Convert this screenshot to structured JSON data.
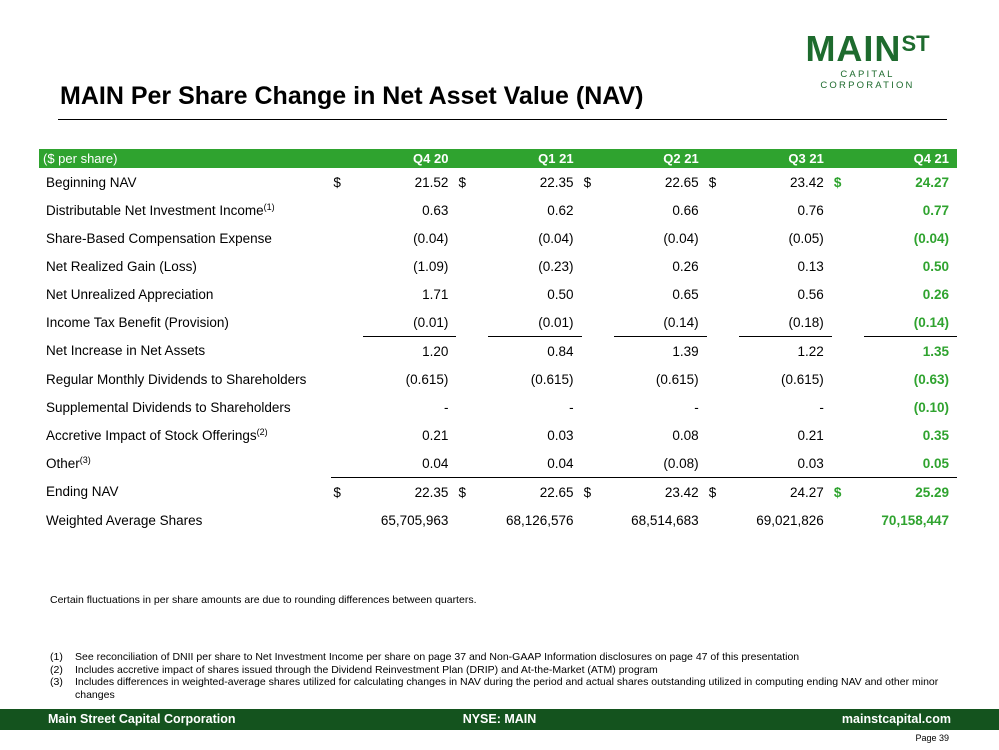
{
  "logo": {
    "main": "MAIN",
    "sup": "ST",
    "sub": "CAPITAL CORPORATION"
  },
  "title": "MAIN Per Share Change in Net Asset Value (NAV)",
  "table": {
    "header_label": "($ per share)",
    "columns": [
      "Q4 20",
      "Q1 21",
      "Q2 21",
      "Q3 21",
      "Q4 21"
    ],
    "rows": [
      {
        "label": "Beginning NAV",
        "dollar": true,
        "values": [
          "21.52",
          "22.35",
          "22.65",
          "23.42",
          "24.27"
        ]
      },
      {
        "label": "Distributable Net Investment Income",
        "fn": "(1)",
        "values": [
          "0.63",
          "0.62",
          "0.66",
          "0.76",
          "0.77"
        ]
      },
      {
        "label": "Share-Based Compensation Expense",
        "values": [
          "(0.04)",
          "(0.04)",
          "(0.04)",
          "(0.05)",
          "(0.04)"
        ]
      },
      {
        "label": "Net Realized Gain (Loss)",
        "values": [
          "(1.09)",
          "(0.23)",
          "0.26",
          "0.13",
          "0.50"
        ]
      },
      {
        "label": "Net Unrealized Appreciation",
        "values": [
          "1.71",
          "0.50",
          "0.65",
          "0.56",
          "0.26"
        ]
      },
      {
        "label": "Income Tax Benefit (Provision)",
        "values": [
          "(0.01)",
          "(0.01)",
          "(0.14)",
          "(0.18)",
          "(0.14)"
        ]
      },
      {
        "label": "Net Increase in Net Assets",
        "values": [
          "1.20",
          "0.84",
          "1.39",
          "1.22",
          "1.35"
        ]
      },
      {
        "label": "Regular Monthly Dividends to Shareholders",
        "values": [
          "(0.615)",
          "(0.615)",
          "(0.615)",
          "(0.615)",
          "(0.63)"
        ]
      },
      {
        "label": "Supplemental Dividends to Shareholders",
        "values": [
          "-",
          "-",
          "-",
          "-",
          "(0.10)"
        ]
      },
      {
        "label": "Accretive Impact of Stock Offerings",
        "fn": "(2)",
        "values": [
          "0.21",
          "0.03",
          "0.08",
          "0.21",
          "0.35"
        ]
      },
      {
        "label": "Other",
        "fn": "(3)",
        "values": [
          "0.04",
          "0.04",
          "(0.08)",
          "0.03",
          "0.05"
        ]
      },
      {
        "label": "Ending NAV",
        "dollar": true,
        "values": [
          "22.35",
          "22.65",
          "23.42",
          "24.27",
          "25.29"
        ]
      },
      {
        "label": "Weighted Average Shares",
        "values": [
          "65,705,963",
          "68,126,576",
          "68,514,683",
          "69,021,826",
          "70,158,447"
        ]
      }
    ],
    "dollar_sign": "$"
  },
  "note": "Certain fluctuations in per share amounts are due to rounding differences between quarters.",
  "footnotes": [
    {
      "num": "(1)",
      "text": "See reconciliation of DNII per share to Net Investment Income per share on page 37 and Non-GAAP Information disclosures on page 47 of this presentation"
    },
    {
      "num": "(2)",
      "text": "Includes accretive impact of shares issued through the Dividend Reinvestment Plan (DRIP) and At-the-Market (ATM) program"
    },
    {
      "num": "(3)",
      "text": "Includes differences in weighted-average shares utilized for calculating changes in NAV during the period and actual shares outstanding utilized in computing ending NAV and other minor changes"
    }
  ],
  "footer": {
    "left": "Main Street Capital Corporation",
    "center": "NYSE: MAIN",
    "right": "mainstcapital.com"
  },
  "page": "Page  39",
  "colors": {
    "brand_dark": "#14531e",
    "highlight": "#2fa32f",
    "logo": "#1e6b2e"
  }
}
